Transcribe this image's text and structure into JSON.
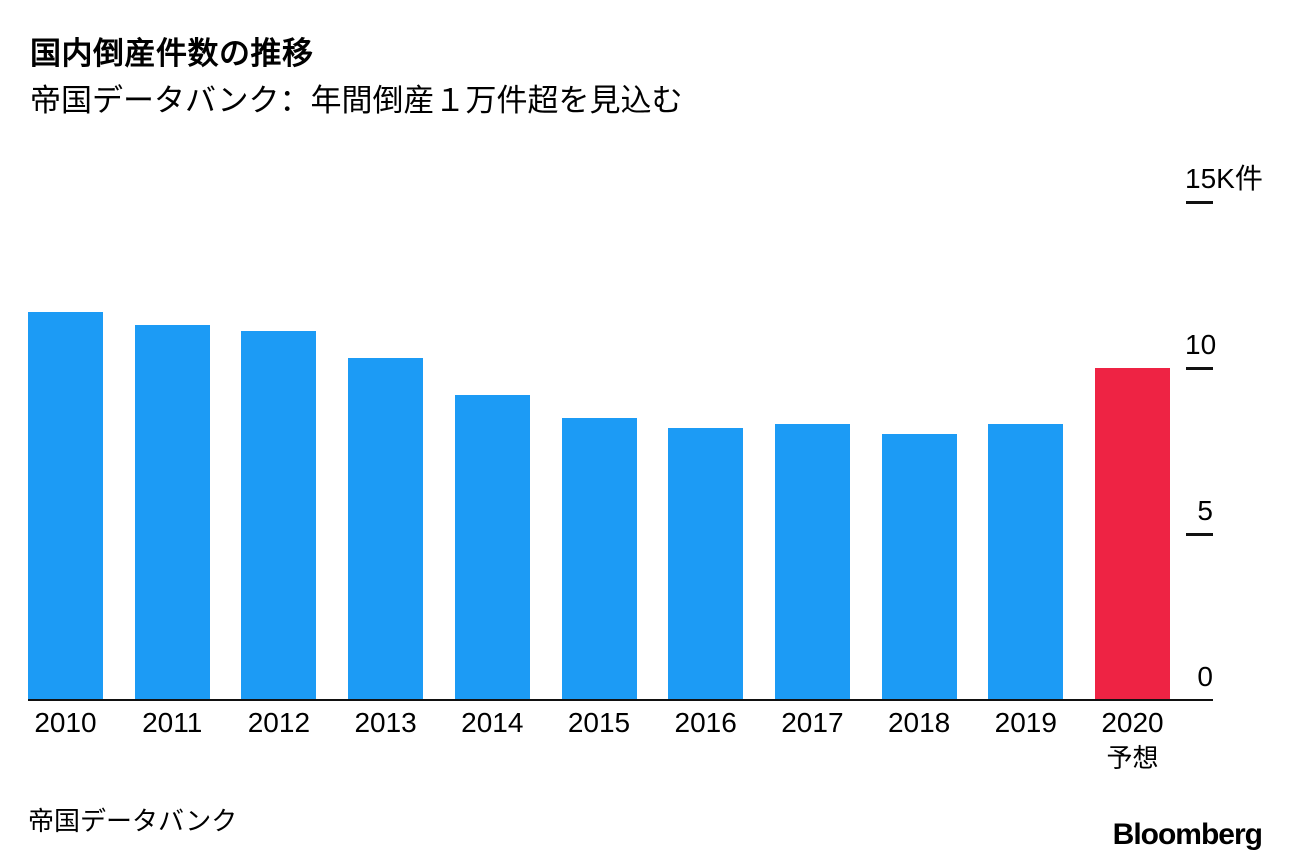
{
  "header": {
    "title": "国内倒産件数の推移",
    "subtitle": "帝国データバンク：年間倒産１万件超を見込む"
  },
  "chart_data": {
    "type": "bar",
    "title": "国内倒産件数の推移",
    "subtitle": "帝国データバンク：年間倒産１万件超を見込む",
    "unit_label": "K件",
    "categories": [
      "2010",
      "2011",
      "2012",
      "2013",
      "2014",
      "2015",
      "2016",
      "2017",
      "2018",
      "2019",
      "2020"
    ],
    "values": [
      11.7,
      11.3,
      11.1,
      10.3,
      9.2,
      8.5,
      8.2,
      8.3,
      8.0,
      8.3,
      10.0
    ],
    "forecast_index": 10,
    "forecast_note": "予想",
    "bar_color": "#1c9bf5",
    "forecast_color": "#ee2344",
    "axis_color": "#111111",
    "ylim": [
      0,
      15
    ],
    "yticks": [
      {
        "value": 0,
        "label": "0"
      },
      {
        "value": 5,
        "label": "5"
      },
      {
        "value": 10,
        "label": "10"
      },
      {
        "value": 15,
        "label": "15K件"
      }
    ],
    "grid": false,
    "legend": "none",
    "y_axis_side": "right"
  },
  "footer": {
    "source": "帝国データバンク",
    "brand": "Bloomberg"
  }
}
